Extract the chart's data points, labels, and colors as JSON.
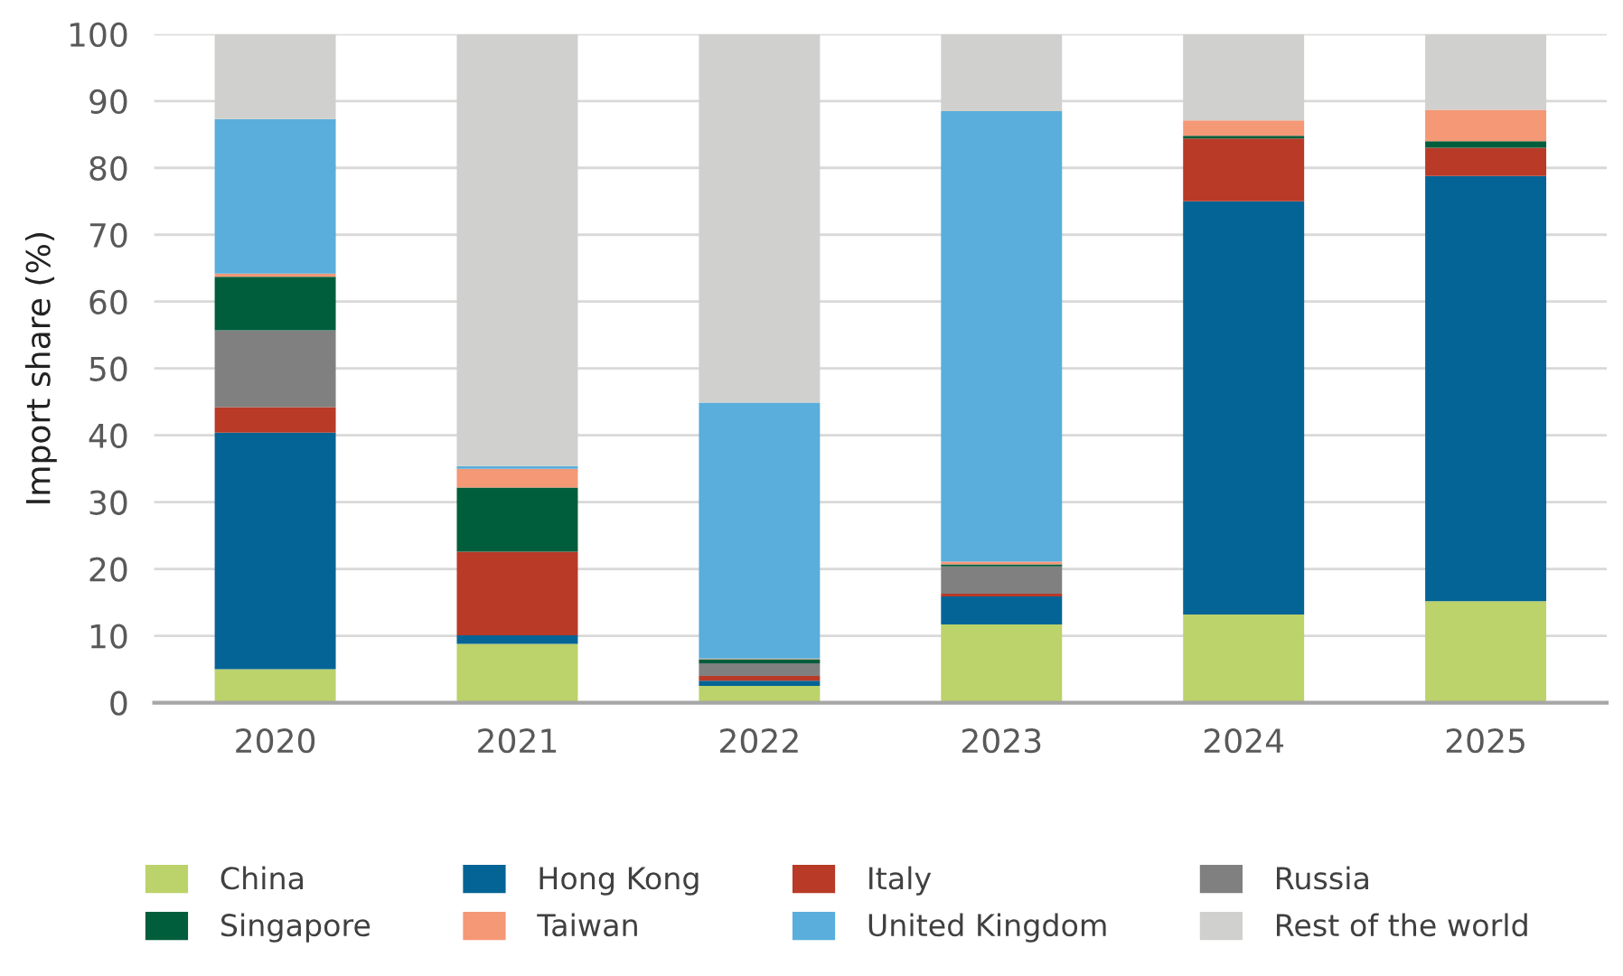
{
  "chart_data": {
    "type": "bar",
    "stacked": true,
    "ylabel": "Import share (%)",
    "categories": [
      "2020",
      "2021",
      "2022",
      "2023",
      "2024",
      "2025"
    ],
    "series": [
      {
        "name": "China",
        "color": "#bcd26a",
        "values": [
          5.0,
          8.8,
          2.5,
          11.7,
          13.2,
          15.2
        ]
      },
      {
        "name": "Hong Kong",
        "color": "#046496",
        "values": [
          35.4,
          1.3,
          0.8,
          4.2,
          61.8,
          63.6
        ]
      },
      {
        "name": "Italy",
        "color": "#b83a27",
        "values": [
          3.8,
          12.5,
          0.7,
          0.4,
          9.4,
          4.2
        ]
      },
      {
        "name": "Russia",
        "color": "#808080",
        "values": [
          11.5,
          0,
          1.9,
          4.1,
          0,
          0
        ]
      },
      {
        "name": "Singapore",
        "color": "#005e3c",
        "values": [
          8.0,
          9.6,
          0.6,
          0.3,
          0.4,
          1.0
        ]
      },
      {
        "name": "Taiwan",
        "color": "#f49876",
        "values": [
          0.5,
          2.8,
          0.1,
          0.4,
          2.3,
          4.7
        ]
      },
      {
        "name": "United Kingdom",
        "color": "#59aedb",
        "values": [
          23.1,
          0.4,
          38.3,
          67.4,
          0,
          0
        ]
      },
      {
        "name": "Rest of the world",
        "color": "#d0d0ce",
        "values": [
          12.7,
          64.6,
          55.1,
          11.5,
          12.9,
          11.3
        ]
      }
    ],
    "ylim": [
      0,
      100
    ],
    "yticks": [
      0,
      10,
      20,
      30,
      40,
      50,
      60,
      70,
      80,
      90,
      100
    ],
    "grid": "y",
    "legend": "bottom"
  }
}
